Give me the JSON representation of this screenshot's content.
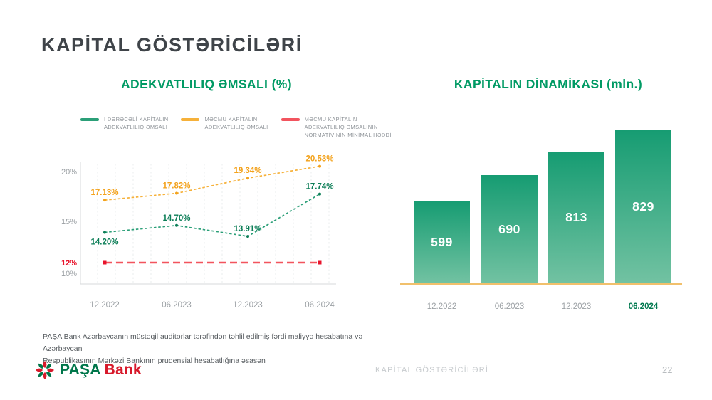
{
  "slide_title": "KAPİTAL GÖSTƏRİCİLƏRİ",
  "accent_colors": {
    "green": "#009a64",
    "orange": "#f5a41f",
    "red": "#e8132b"
  },
  "chart_data": [
    {
      "type": "line",
      "title": "ADEKVATLILIQ ƏMSALI (%)",
      "x": [
        "12.2022",
        "06.2023",
        "12.2023",
        "06.2024"
      ],
      "yticks": [
        {
          "label": "20%",
          "value": 20,
          "color": "#9ba0a4",
          "bold": false
        },
        {
          "label": "15%",
          "value": 15,
          "color": "#9ba0a4",
          "bold": false
        },
        {
          "label": "12%",
          "value": 12,
          "color": "#e8132b",
          "bold": true
        },
        {
          "label": "10%",
          "value": 10,
          "color": "#9ba0a4",
          "bold": false
        }
      ],
      "series": [
        {
          "name": "I DƏRƏCƏLİ KAPİTALIN ADEKVATLILIQ ƏMSALI",
          "legend_lines": [
            "I DƏRƏCƏLİ KAPİTALIN",
            "ADEKVATLILIQ ƏMSALI"
          ],
          "color": "#2b9f78",
          "label_color": "#0c7e57",
          "values": [
            14.2,
            14.7,
            13.91,
            17.74
          ],
          "point_labels": [
            "14.20%",
            "14.70%",
            "13.91%",
            "17.74%"
          ],
          "label_side": [
            "below",
            "above",
            "above",
            "above"
          ],
          "style": "dashed-points"
        },
        {
          "name": "MƏCMU KAPİTALIN ADEKVATLILIQ ƏMSALI",
          "legend_lines": [
            "MƏCMU KAPİTALIN",
            "ADEKVATLILIQ ƏMSALI"
          ],
          "color": "#f6b13a",
          "label_color": "#f3a21c",
          "values": [
            17.13,
            17.82,
            19.34,
            20.53
          ],
          "point_labels": [
            "17.13%",
            "17.82%",
            "19.34%",
            "20.53%"
          ],
          "label_side": [
            "above",
            "above",
            "above",
            "above"
          ],
          "style": "dashed-points"
        },
        {
          "name": "MƏCMU KAPİTALIN ADEKVATLILIQ ƏMSALININ NORMATİVİNİN MİNİMAL HƏDDİ",
          "legend_lines": [
            "MƏCMU KAPİTALIN",
            "ADEKVATLILIQ ƏMSALININ",
            "NORMATİVİNİN MİNİMAL HƏDDİ"
          ],
          "color": "#f2545e",
          "label_color": "#e8132b",
          "values": [
            12,
            12,
            12,
            12
          ],
          "style": "flat-dashed"
        }
      ],
      "legend_position": "top",
      "grid": "vertical-dashed"
    },
    {
      "type": "bar",
      "title": "KAPİTALIN DİNAMİKASI (mln.)",
      "categories": [
        "12.2022",
        "06.2023",
        "12.2023",
        "06.2024"
      ],
      "values": [
        599,
        690,
        813,
        829
      ],
      "value_labels": [
        "599",
        "690",
        "813",
        "829"
      ],
      "highlight_index": 3,
      "bar_gradient_top": "#169c72",
      "bar_gradient_bottom": "#72c2a2",
      "baseline_color": "#f1c06c"
    }
  ],
  "footnote": {
    "line1": "PAŞA Bank Azərbaycanın müstəqil auditorlar tərəfindən təhlil edilmiş fərdi maliyyə hesabatına və Azərbaycan",
    "line2": "Respublikasının Mərkəzi Bankının prudensial hesabatlığına əsasən"
  },
  "footer": {
    "logo_word1": "PAŞA",
    "logo_word2": "Bank",
    "section_label": "KAPİTAL GÖSTƏRİCİLƏRİ",
    "page_number": "22"
  }
}
